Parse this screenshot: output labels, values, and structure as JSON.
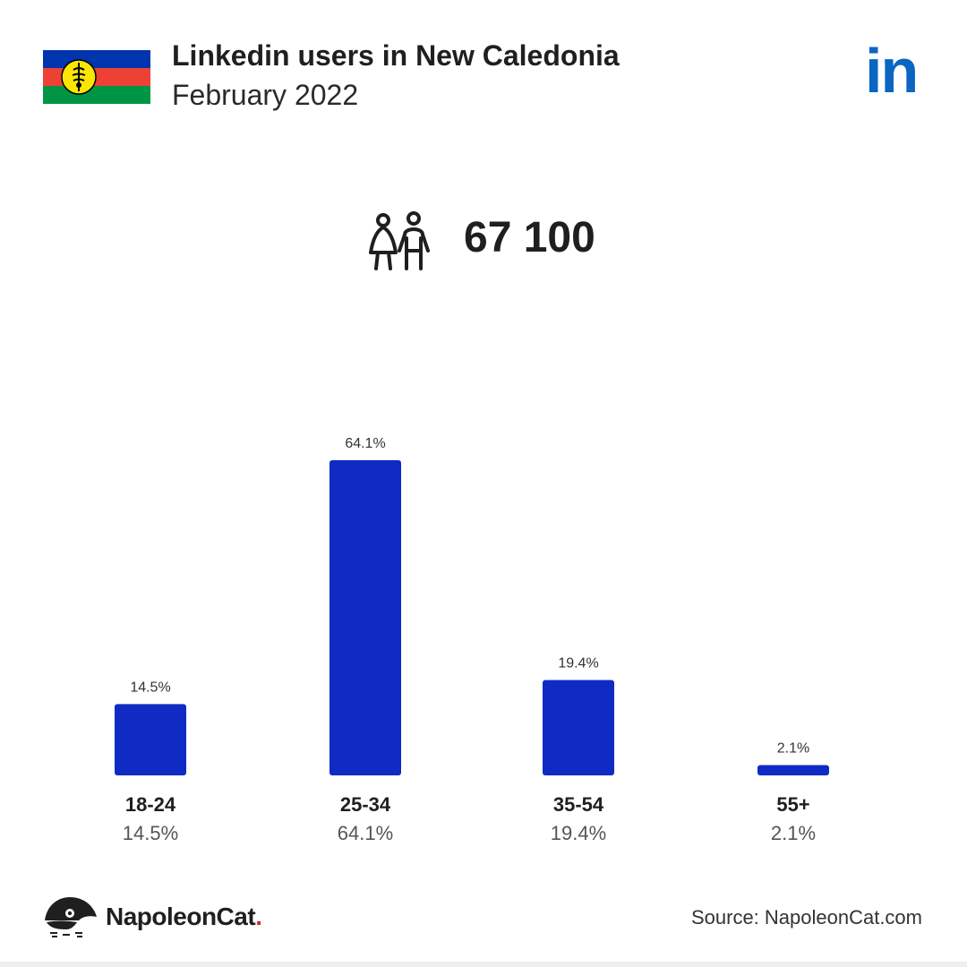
{
  "header": {
    "title": "Linkedin users in New Caledonia",
    "subtitle": "February 2022",
    "logo_text": "in",
    "flag_icon": "new-caledonia-flag-icon",
    "brand_icon": "linkedin-logo-icon"
  },
  "summary": {
    "total_users": "67 100",
    "icon": "users-icon"
  },
  "chart_data": {
    "type": "bar",
    "categories": [
      "18-24",
      "25-34",
      "35-54",
      "55+"
    ],
    "values": [
      14.5,
      64.1,
      19.4,
      2.1
    ],
    "value_labels": [
      "14.5%",
      "64.1%",
      "19.4%",
      "2.1%"
    ],
    "title": "",
    "xlabel": "",
    "ylabel": "",
    "ylim": [
      0,
      64.1
    ],
    "grid": false,
    "legend": "none",
    "bar_color": "#0f2bc4"
  },
  "footer": {
    "brand": "NapoleonCat",
    "brand_dot": ".",
    "source": "Source: NapoleonCat.com",
    "brand_icon": "napoleoncat-logo-icon"
  },
  "colors": {
    "linkedin_blue": "#0a66c2",
    "bar_blue": "#0f2bc4",
    "brand_red": "#e0262a"
  }
}
